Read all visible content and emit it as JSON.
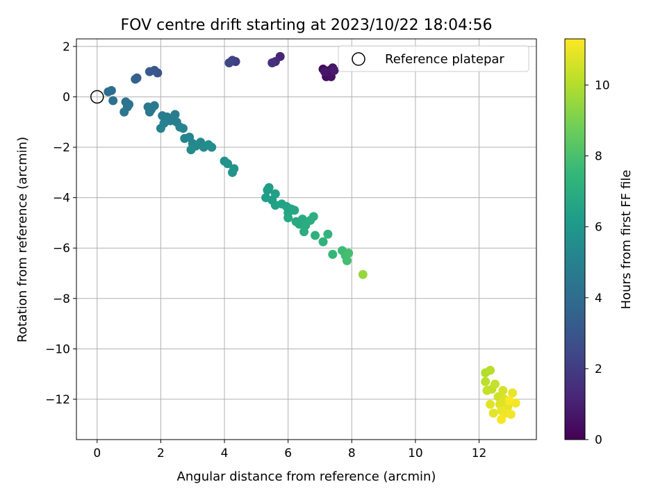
{
  "chart_data": {
    "type": "scatter",
    "title": "FOV centre drift starting at 2023/10/22 18:04:56",
    "xlabel": "Angular distance from reference (arcmin)",
    "ylabel": "Rotation from reference (arcmin)",
    "xlim": [
      -0.65,
      13.8
    ],
    "ylim": [
      -13.6,
      2.3
    ],
    "xticks": [
      0,
      2,
      4,
      6,
      8,
      10,
      12
    ],
    "yticks": [
      2,
      0,
      -2,
      -4,
      -6,
      -8,
      -10,
      -12
    ],
    "xtick_labels": [
      "0",
      "2",
      "4",
      "6",
      "8",
      "10",
      "12"
    ],
    "ytick_labels": [
      "2",
      "0",
      "−2",
      "−4",
      "−6",
      "−8",
      "−10",
      "−12"
    ],
    "grid": true,
    "legend": {
      "position": "top-right",
      "label": "Reference platepar"
    },
    "reference_point": {
      "x": 0,
      "y": 0
    },
    "colorbar": {
      "label": "Hours from first FF file",
      "min": 0,
      "max": 11.3,
      "ticks": [
        0,
        2,
        4,
        6,
        8,
        10
      ],
      "tick_labels": [
        "0",
        "2",
        "4",
        "6",
        "8",
        "10"
      ],
      "colormap": "viridis"
    },
    "series": [
      {
        "points": [
          {
            "x": 7.1,
            "y": 1.1,
            "h": 0.2
          },
          {
            "x": 7.2,
            "y": 0.8,
            "h": 0.3
          },
          {
            "x": 7.3,
            "y": 1.05,
            "h": 0.4
          },
          {
            "x": 7.35,
            "y": 0.8,
            "h": 0.5
          },
          {
            "x": 7.4,
            "y": 1.15,
            "h": 0.6
          },
          {
            "x": 7.15,
            "y": 1.0,
            "h": 0.7
          },
          {
            "x": 7.45,
            "y": 1.05,
            "h": 0.8
          },
          {
            "x": 5.75,
            "y": 1.6,
            "h": 1.2
          },
          {
            "x": 5.6,
            "y": 1.4,
            "h": 1.4
          },
          {
            "x": 5.5,
            "y": 1.35,
            "h": 1.6
          },
          {
            "x": 4.35,
            "y": 1.4,
            "h": 2.0
          },
          {
            "x": 4.25,
            "y": 1.45,
            "h": 2.2
          },
          {
            "x": 4.15,
            "y": 1.35,
            "h": 2.4
          },
          {
            "x": 1.9,
            "y": 0.95,
            "h": 3.0
          },
          {
            "x": 1.8,
            "y": 1.05,
            "h": 3.1
          },
          {
            "x": 1.65,
            "y": 1.0,
            "h": 3.2
          },
          {
            "x": 1.25,
            "y": 0.75,
            "h": 3.4
          },
          {
            "x": 1.2,
            "y": 0.7,
            "h": 3.5
          },
          {
            "x": 0.45,
            "y": 0.25,
            "h": 4.0
          },
          {
            "x": 0.35,
            "y": 0.2,
            "h": 4.1
          },
          {
            "x": 0.5,
            "y": -0.15,
            "h": 4.2
          },
          {
            "x": 0.9,
            "y": -0.2,
            "h": 4.3
          },
          {
            "x": 1.0,
            "y": -0.3,
            "h": 4.35
          },
          {
            "x": 0.95,
            "y": -0.4,
            "h": 4.4
          },
          {
            "x": 0.85,
            "y": -0.6,
            "h": 4.45
          },
          {
            "x": 1.6,
            "y": -0.4,
            "h": 4.5
          },
          {
            "x": 1.7,
            "y": -0.5,
            "h": 4.55
          },
          {
            "x": 1.65,
            "y": -0.6,
            "h": 4.6
          },
          {
            "x": 1.8,
            "y": -0.35,
            "h": 4.65
          },
          {
            "x": 2.05,
            "y": -0.75,
            "h": 4.7
          },
          {
            "x": 2.2,
            "y": -0.8,
            "h": 4.75
          },
          {
            "x": 2.3,
            "y": -0.95,
            "h": 4.8
          },
          {
            "x": 2.45,
            "y": -0.7,
            "h": 4.85
          },
          {
            "x": 2.5,
            "y": -1.0,
            "h": 4.9
          },
          {
            "x": 2.1,
            "y": -1.05,
            "h": 4.95
          },
          {
            "x": 2.0,
            "y": -1.25,
            "h": 5.0
          },
          {
            "x": 2.6,
            "y": -1.2,
            "h": 5.05
          },
          {
            "x": 2.7,
            "y": -1.25,
            "h": 5.1
          },
          {
            "x": 2.75,
            "y": -1.65,
            "h": 5.15
          },
          {
            "x": 2.9,
            "y": -1.6,
            "h": 5.2
          },
          {
            "x": 3.0,
            "y": -1.85,
            "h": 5.25
          },
          {
            "x": 3.1,
            "y": -1.95,
            "h": 5.3
          },
          {
            "x": 3.25,
            "y": -1.8,
            "h": 5.35
          },
          {
            "x": 3.35,
            "y": -2.0,
            "h": 5.4
          },
          {
            "x": 2.95,
            "y": -2.1,
            "h": 5.45
          },
          {
            "x": 3.5,
            "y": -1.9,
            "h": 5.5
          },
          {
            "x": 3.6,
            "y": -2.0,
            "h": 5.55
          },
          {
            "x": 4.0,
            "y": -2.55,
            "h": 5.7
          },
          {
            "x": 4.1,
            "y": -2.65,
            "h": 5.75
          },
          {
            "x": 4.3,
            "y": -2.85,
            "h": 5.8
          },
          {
            "x": 4.25,
            "y": -3.0,
            "h": 5.85
          },
          {
            "x": 5.35,
            "y": -3.7,
            "h": 6.2
          },
          {
            "x": 5.4,
            "y": -3.6,
            "h": 6.25
          },
          {
            "x": 5.3,
            "y": -4.0,
            "h": 6.3
          },
          {
            "x": 5.5,
            "y": -4.1,
            "h": 6.35
          },
          {
            "x": 5.6,
            "y": -3.85,
            "h": 6.4
          },
          {
            "x": 5.6,
            "y": -4.3,
            "h": 6.45
          },
          {
            "x": 5.8,
            "y": -4.25,
            "h": 6.5
          },
          {
            "x": 5.95,
            "y": -4.35,
            "h": 6.55
          },
          {
            "x": 6.0,
            "y": -4.6,
            "h": 6.6
          },
          {
            "x": 6.1,
            "y": -4.45,
            "h": 6.65
          },
          {
            "x": 6.2,
            "y": -4.5,
            "h": 6.7
          },
          {
            "x": 6.0,
            "y": -4.8,
            "h": 6.75
          },
          {
            "x": 6.25,
            "y": -4.95,
            "h": 6.8
          },
          {
            "x": 6.35,
            "y": -5.05,
            "h": 6.85
          },
          {
            "x": 6.45,
            "y": -4.85,
            "h": 6.9
          },
          {
            "x": 6.55,
            "y": -5.1,
            "h": 6.95
          },
          {
            "x": 6.5,
            "y": -5.35,
            "h": 7.0
          },
          {
            "x": 6.7,
            "y": -4.9,
            "h": 7.05
          },
          {
            "x": 6.8,
            "y": -4.75,
            "h": 7.1
          },
          {
            "x": 6.85,
            "y": -5.5,
            "h": 7.2
          },
          {
            "x": 7.1,
            "y": -5.75,
            "h": 7.3
          },
          {
            "x": 7.25,
            "y": -5.45,
            "h": 7.35
          },
          {
            "x": 7.4,
            "y": -6.25,
            "h": 7.5
          },
          {
            "x": 7.7,
            "y": -6.1,
            "h": 7.7
          },
          {
            "x": 7.8,
            "y": -6.3,
            "h": 7.8
          },
          {
            "x": 7.85,
            "y": -6.5,
            "h": 7.85
          },
          {
            "x": 7.9,
            "y": -6.2,
            "h": 7.9
          },
          {
            "x": 8.35,
            "y": -7.05,
            "h": 9.5
          },
          {
            "x": 12.2,
            "y": -10.95,
            "h": 10.0
          },
          {
            "x": 12.35,
            "y": -10.85,
            "h": 10.1
          },
          {
            "x": 12.2,
            "y": -11.3,
            "h": 10.15
          },
          {
            "x": 12.4,
            "y": -11.6,
            "h": 10.25
          },
          {
            "x": 12.25,
            "y": -11.65,
            "h": 10.3
          },
          {
            "x": 12.5,
            "y": -11.4,
            "h": 10.35
          },
          {
            "x": 12.6,
            "y": -11.9,
            "h": 10.5
          },
          {
            "x": 12.75,
            "y": -11.65,
            "h": 10.6
          },
          {
            "x": 12.8,
            "y": -12.0,
            "h": 10.7
          },
          {
            "x": 12.65,
            "y": -12.2,
            "h": 10.75
          },
          {
            "x": 12.35,
            "y": -12.2,
            "h": 10.8
          },
          {
            "x": 12.45,
            "y": -12.55,
            "h": 10.85
          },
          {
            "x": 12.9,
            "y": -12.3,
            "h": 10.9
          },
          {
            "x": 13.05,
            "y": -11.75,
            "h": 10.95
          },
          {
            "x": 12.7,
            "y": -12.45,
            "h": 11.0
          },
          {
            "x": 12.85,
            "y": -12.55,
            "h": 11.05
          },
          {
            "x": 13.0,
            "y": -12.6,
            "h": 11.1
          },
          {
            "x": 13.15,
            "y": -12.15,
            "h": 11.15
          },
          {
            "x": 12.7,
            "y": -12.8,
            "h": 11.2
          },
          {
            "x": 12.95,
            "y": -12.05,
            "h": 11.25
          }
        ]
      }
    ]
  }
}
